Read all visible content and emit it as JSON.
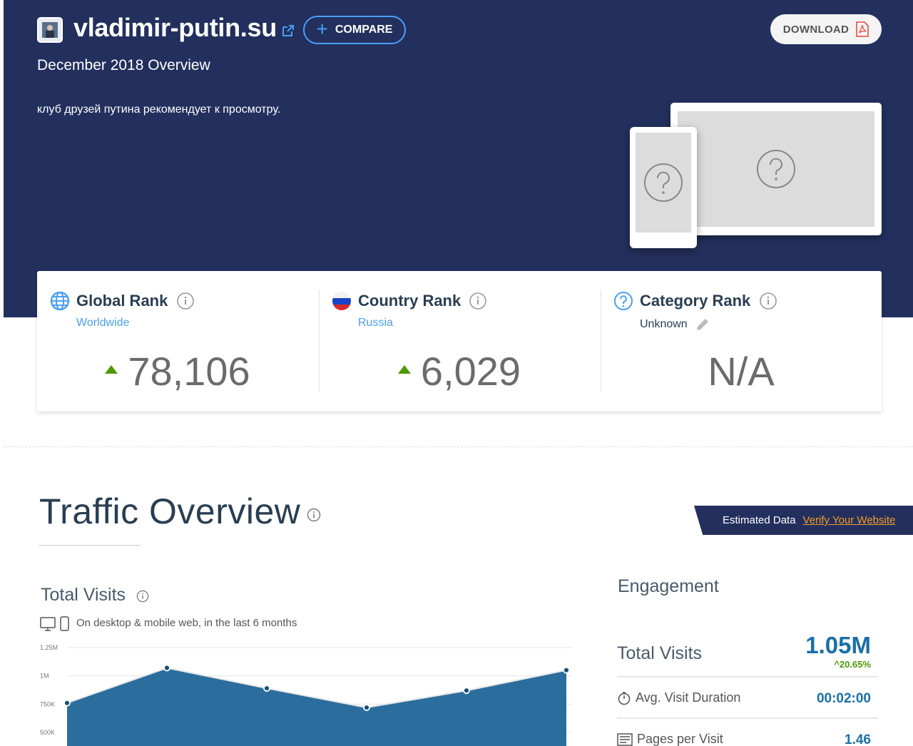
{
  "header": {
    "site_name": "vladimir-putin.su",
    "compare_label": "COMPARE",
    "download_label": "DOWNLOAD",
    "overview_label": "December 2018 Overview",
    "site_description": "клуб друзей путина рекомендует к просмотру."
  },
  "ranks": {
    "global": {
      "title": "Global Rank",
      "subtitle": "Worldwide",
      "value": "78,106",
      "trend": "up"
    },
    "country": {
      "title": "Country Rank",
      "subtitle": "Russia",
      "value": "6,029",
      "trend": "up"
    },
    "category": {
      "title": "Category Rank",
      "subtitle": "Unknown",
      "value": "N/A"
    }
  },
  "traffic": {
    "title": "Traffic Overview",
    "estimated_label": "Estimated Data",
    "verify_label": "Verify Your Website",
    "total_visits_title": "Total Visits",
    "total_visits_subtitle": "On desktop & mobile web, in the last 6 months"
  },
  "engagement": {
    "title": "Engagement",
    "total_visits_label": "Total Visits",
    "total_visits_value": "1.05M",
    "total_visits_change": "20.65%",
    "avg_duration_label": "Avg. Visit Duration",
    "avg_duration_value": "00:02:00",
    "pages_per_visit_label": "Pages per Visit",
    "pages_per_visit_value": "1.46"
  },
  "colors": {
    "header_bg": "#23305e",
    "accent_blue": "#4a9ff5",
    "chart_fill": "#2b6e9e",
    "trend_green": "#4e9a06",
    "verify_orange": "#f39c2a"
  },
  "chart_data": {
    "type": "area",
    "x": [
      "",
      "",
      "",
      "",
      "",
      ""
    ],
    "values": [
      760000,
      1070000,
      890000,
      720000,
      870000,
      1050000
    ],
    "ytick_labels": [
      "1.25M",
      "1M",
      "750K",
      "500K"
    ],
    "yticks": [
      1250000,
      1000000,
      750000,
      500000
    ],
    "ylim": [
      380000,
      1300000
    ],
    "grid": true
  }
}
